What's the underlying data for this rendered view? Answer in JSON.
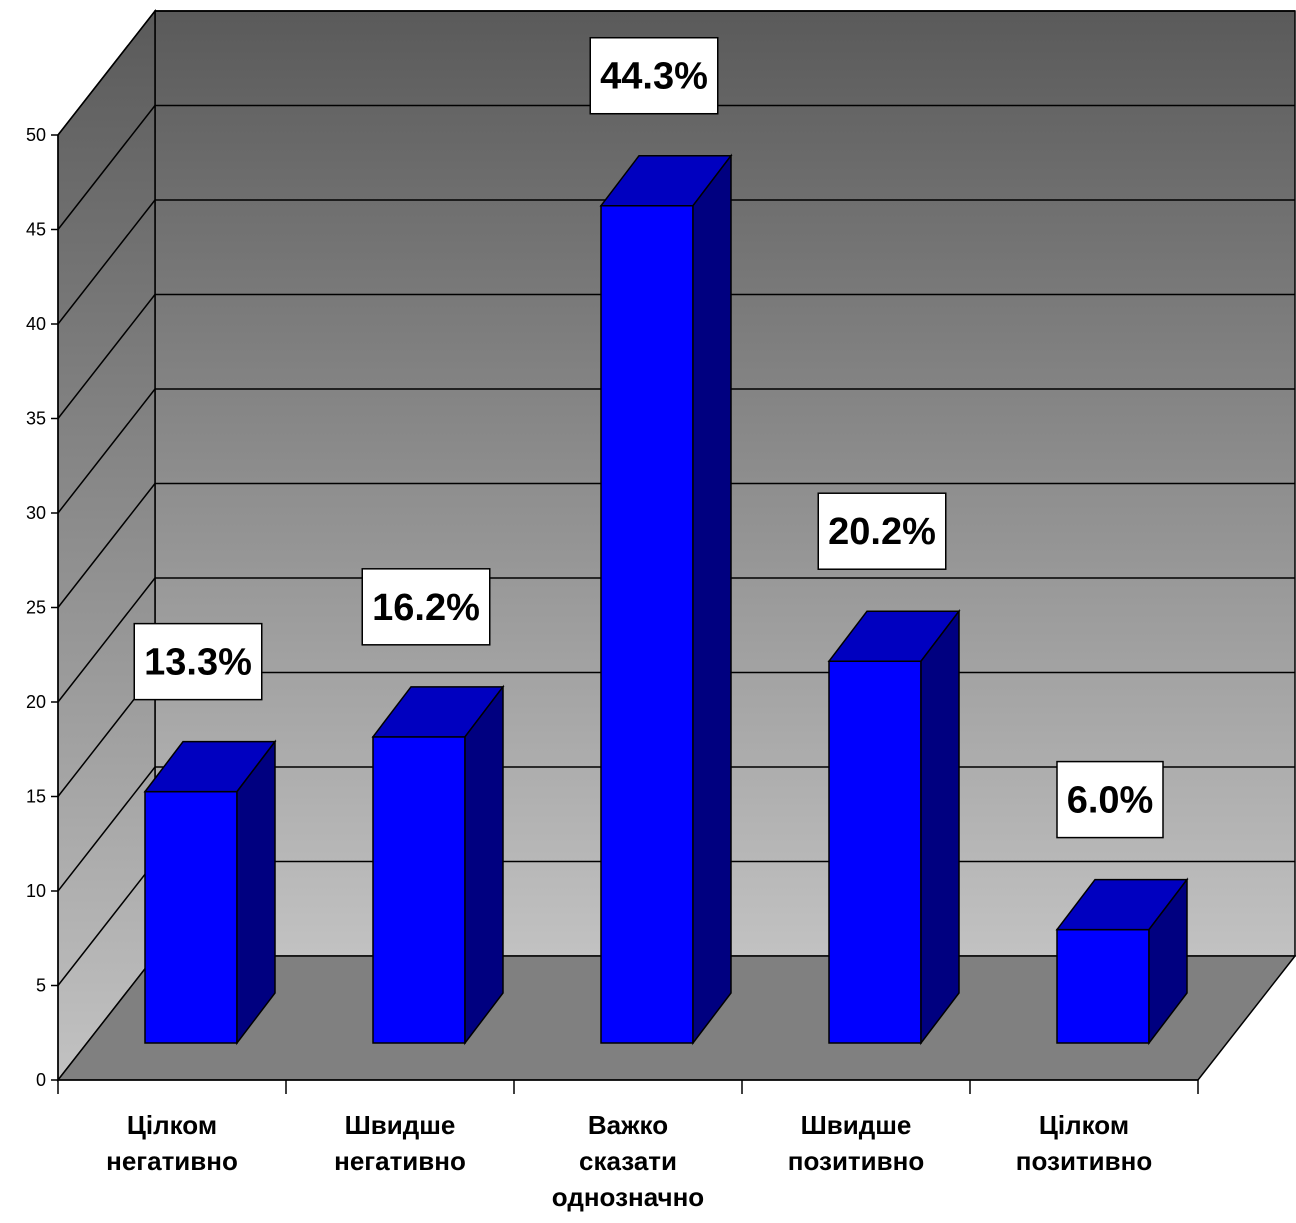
{
  "chart_data": {
    "type": "bar",
    "categories": [
      [
        "Цілком",
        "негативно"
      ],
      [
        "Швидше",
        "негативно"
      ],
      [
        "Важко",
        "сказати",
        "однозначно"
      ],
      [
        "Швидше",
        "позитивно"
      ],
      [
        "Цілком",
        "позитивно"
      ]
    ],
    "values": [
      13.3,
      16.2,
      44.3,
      20.2,
      6.0
    ],
    "data_labels": [
      "13.3%",
      "16.2%",
      "44.3%",
      "20.2%",
      "6.0%"
    ],
    "ylim": [
      0,
      50
    ],
    "yticks": [
      "0",
      "5",
      "10",
      "15",
      "20",
      "25",
      "30",
      "35",
      "40",
      "45",
      "50"
    ],
    "title": "",
    "xlabel": "",
    "ylabel": "",
    "grid": true,
    "style": "3d-column",
    "colors": {
      "bar_front": "#0000ff",
      "bar_top": "#0000c0",
      "bar_side": "#000080",
      "wall_top": "#5a5a5a",
      "wall_bottom": "#c2c2c2",
      "floor": "#808080"
    }
  }
}
